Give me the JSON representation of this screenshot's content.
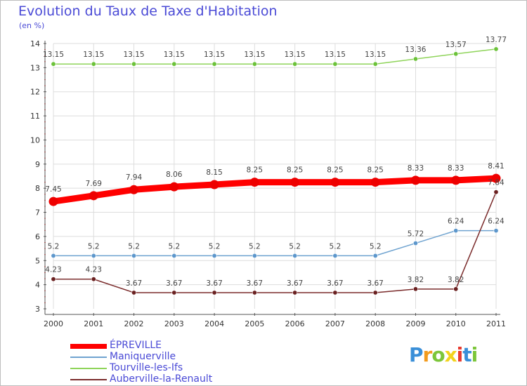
{
  "title": "Evolution du Taux de Taxe d'Habitation",
  "subtitle": "(en %)",
  "brand": {
    "letters": [
      "P",
      "r",
      "o",
      "x",
      "i",
      "t",
      "i"
    ],
    "colors": [
      "#3a8fd8",
      "#f29b1d",
      "#7cc63a",
      "#f2d31d",
      "#e8392e",
      "#3a8fd8",
      "#7cc63a"
    ]
  },
  "chart_data": {
    "type": "line",
    "x": [
      "2000",
      "2001",
      "2002",
      "2003",
      "2004",
      "2005",
      "2006",
      "2007",
      "2008",
      "2009",
      "2010",
      "2011"
    ],
    "ylim": [
      3,
      14
    ],
    "yticks": [
      3,
      4,
      5,
      6,
      7,
      8,
      9,
      10,
      11,
      12,
      13,
      14
    ],
    "grid": true,
    "legend_position": "bottom-left",
    "series": [
      {
        "name": "Tourville-les-Ifs",
        "color": "#8fd45a",
        "marker": "#6cc23a",
        "width": 1.5,
        "values": [
          13.15,
          13.15,
          13.15,
          13.15,
          13.15,
          13.15,
          13.15,
          13.15,
          13.15,
          13.36,
          13.57,
          13.77
        ],
        "labels": [
          "13.15",
          "13.15",
          "13.15",
          "13.15",
          "13.15",
          "13.15",
          "13.15",
          "13.15",
          "13.15",
          "13.36",
          "13.57",
          "13.77"
        ]
      },
      {
        "name": "ÉPREVILLE",
        "color": "#ff0000",
        "marker": "#ee0000",
        "width": 9,
        "values": [
          7.45,
          7.69,
          7.94,
          8.06,
          8.15,
          8.25,
          8.25,
          8.25,
          8.25,
          8.33,
          8.33,
          8.41
        ],
        "labels": [
          "7.45",
          "7.69",
          "7.94",
          "8.06",
          "8.15",
          "8.25",
          "8.25",
          "8.25",
          "8.25",
          "8.33",
          "8.33",
          "8.41"
        ]
      },
      {
        "name": "Maniquerville",
        "color": "#6fa3d0",
        "marker": "#5d97cc",
        "width": 1.5,
        "values": [
          5.2,
          5.2,
          5.2,
          5.2,
          5.2,
          5.2,
          5.2,
          5.2,
          5.2,
          5.72,
          6.24,
          6.24
        ],
        "labels": [
          "5.2",
          "5.2",
          "5.2",
          "5.2",
          "5.2",
          "5.2",
          "5.2",
          "5.2",
          "5.2",
          "5.72",
          "6.24",
          "6.24"
        ]
      },
      {
        "name": "Auberville-la-Renault",
        "color": "#7b2c2c",
        "marker": "#6a2020",
        "width": 1.5,
        "values": [
          4.23,
          4.23,
          3.67,
          3.67,
          3.67,
          3.67,
          3.67,
          3.67,
          3.67,
          3.82,
          3.82,
          7.84
        ],
        "labels": [
          "4.23",
          "4.23",
          "3.67",
          "3.67",
          "3.67",
          "3.67",
          "3.67",
          "3.67",
          "3.67",
          "3.82",
          "3.82",
          "7.84"
        ]
      }
    ],
    "legend": [
      {
        "name": "ÉPREVILLE",
        "color": "#ff0000",
        "thick": true
      },
      {
        "name": "Maniquerville",
        "color": "#6fa3d0",
        "thick": false
      },
      {
        "name": "Tourville-les-Ifs",
        "color": "#8fd45a",
        "thick": false
      },
      {
        "name": "Auberville-la-Renault",
        "color": "#7b2c2c",
        "thick": false
      }
    ]
  }
}
